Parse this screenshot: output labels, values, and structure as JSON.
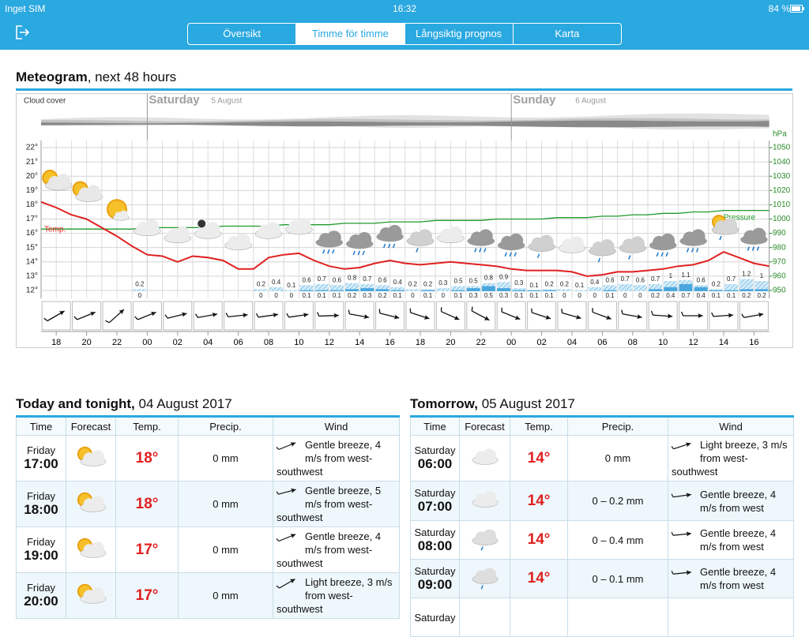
{
  "status_bar": {
    "carrier": "Inget SIM",
    "time": "16:32",
    "battery": "84 %"
  },
  "tabs": [
    "Översikt",
    "Timme för timme",
    "Långsiktig prognos",
    "Karta"
  ],
  "meteogram": {
    "title": "Meteogram",
    "subtitle": ", next 48 hours",
    "cloud_cover_label": "Cloud cover",
    "days": [
      {
        "name": "Saturday",
        "date": "5 August"
      },
      {
        "name": "Sunday",
        "date": "6 August"
      }
    ],
    "temp_label": "Temp.",
    "pressure_label": "Pressure",
    "pressure_unit": "hPa",
    "x_labels": [
      "18",
      "20",
      "22",
      "00",
      "02",
      "04",
      "06",
      "08",
      "10",
      "12",
      "14",
      "16",
      "18",
      "20",
      "22",
      "00",
      "02",
      "04",
      "06",
      "08",
      "10",
      "12",
      "14",
      "16"
    ],
    "ylim": [
      11.5,
      22.5
    ],
    "yticks": [
      {
        "value": 12,
        "label": "12°"
      },
      {
        "value": 13,
        "label": "13°"
      },
      {
        "value": 14,
        "label": "14°"
      },
      {
        "value": 15,
        "label": "15°"
      },
      {
        "value": 16,
        "label": "16°"
      },
      {
        "value": 17,
        "label": "17°"
      },
      {
        "value": 18,
        "label": "18°"
      },
      {
        "value": 19,
        "label": "19°"
      },
      {
        "value": 20,
        "label": "20°"
      },
      {
        "value": 21,
        "label": "21°"
      },
      {
        "value": 22,
        "label": "22°"
      }
    ],
    "y2lim": [
      945,
      1055
    ],
    "y2ticks": [
      950,
      960,
      970,
      980,
      990,
      1000,
      1010,
      1020,
      1030,
      1040,
      1050
    ],
    "temperature": [
      18.2,
      17.8,
      17.3,
      17.0,
      16.4,
      15.8,
      15.1,
      14.5,
      14.4,
      14.0,
      14.4,
      14.3,
      14.1,
      13.5,
      13.5,
      14.3,
      14.5,
      14.6,
      14.1,
      13.7,
      13.5,
      13.6,
      13.9,
      14.1,
      13.9,
      13.8,
      13.9,
      14.0,
      13.9,
      13.8,
      13.7,
      13.5,
      13.4,
      13.4,
      13.4,
      13.3,
      13.0,
      13.1,
      13.3,
      13.3,
      13.4,
      13.5,
      13.7,
      13.8,
      14.1,
      14.7,
      14.3,
      13.9,
      13.7
    ],
    "pressure": [
      993,
      993,
      993,
      993,
      993,
      993,
      993,
      994,
      994,
      994,
      994,
      994,
      995,
      995,
      995,
      995,
      996,
      996,
      996,
      996,
      997,
      997,
      997,
      998,
      998,
      998,
      999,
      999,
      999,
      999,
      1000,
      1000,
      1000,
      1000,
      1001,
      1001,
      1001,
      1002,
      1002,
      1003,
      1003,
      1004,
      1004,
      1005,
      1005,
      1006,
      1006,
      1006,
      1006
    ],
    "precip_max": [
      null,
      null,
      null,
      null,
      null,
      null,
      0.2,
      null,
      null,
      null,
      null,
      null,
      null,
      null,
      0.2,
      0.4,
      0.1,
      0.6,
      0.7,
      0.6,
      0.8,
      0.7,
      0.6,
      0.4,
      0.2,
      0.2,
      0.3,
      0.5,
      0.5,
      0.8,
      0.9,
      0.3,
      0.1,
      0.2,
      0.2,
      0.1,
      0.4,
      0.6,
      0.7,
      0.6,
      0.7,
      1.0,
      1.1,
      0.6,
      0.2,
      0.7,
      1.2,
      1.0
    ],
    "precip_min": [
      null,
      null,
      null,
      null,
      null,
      null,
      0,
      null,
      null,
      null,
      null,
      null,
      null,
      null,
      0,
      0,
      0,
      0.1,
      0.1,
      0.1,
      0.2,
      0.3,
      0.2,
      0.1,
      0,
      0.1,
      0,
      0.1,
      0.3,
      0.5,
      0.3,
      0.1,
      0.1,
      0.1,
      0,
      0,
      0,
      0.1,
      0,
      0,
      0.2,
      0.4,
      0.7,
      0.4,
      0.1,
      0.1,
      0.2,
      0.2
    ]
  },
  "today": {
    "title": "Today and tonight,",
    "date": "04 August 2017",
    "columns": [
      "Time",
      "Forecast",
      "Temp.",
      "Precip.",
      "Wind"
    ],
    "rows": [
      {
        "day": "Friday",
        "time": "17:00",
        "temp": "18°",
        "precip": "0 mm",
        "wind": "Gentle breeze, 4 m/s from west-southwest"
      },
      {
        "day": "Friday",
        "time": "18:00",
        "temp": "18°",
        "precip": "0 mm",
        "wind": "Gentle breeze, 5 m/s from west-southwest"
      },
      {
        "day": "Friday",
        "time": "19:00",
        "temp": "17°",
        "precip": "0 mm",
        "wind": "Gentle breeze, 4 m/s from west-southwest"
      },
      {
        "day": "Friday",
        "time": "20:00",
        "temp": "17°",
        "precip": "0 mm",
        "wind": "Light breeze, 3 m/s from west-southwest"
      }
    ]
  },
  "tomorrow": {
    "title": "Tomorrow,",
    "date": "05 August 2017",
    "columns": [
      "Time",
      "Forecast",
      "Temp.",
      "Precip.",
      "Wind"
    ],
    "rows": [
      {
        "day": "Saturday",
        "time": "06:00",
        "temp": "14°",
        "precip": "0 mm",
        "wind": "Light breeze, 3 m/s from west-southwest"
      },
      {
        "day": "Saturday",
        "time": "07:00",
        "temp": "14°",
        "precip": "0 – 0.2 mm",
        "wind": "Gentle breeze, 4 m/s from west"
      },
      {
        "day": "Saturday",
        "time": "08:00",
        "temp": "14°",
        "precip": "0 – 0.4 mm",
        "wind": "Gentle breeze, 4 m/s from west"
      },
      {
        "day": "Saturday",
        "time": "09:00",
        "temp": "14°",
        "precip": "0 – 0.1 mm",
        "wind": "Gentle breeze, 4 m/s from west"
      },
      {
        "day": "Saturday"
      }
    ]
  }
}
